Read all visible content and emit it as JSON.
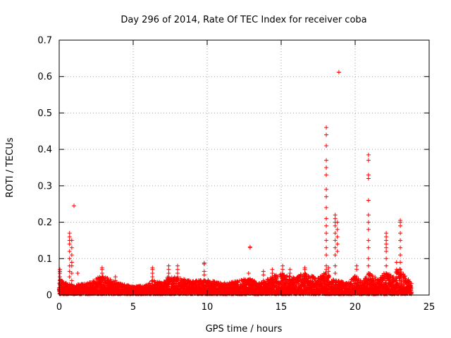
{
  "chart_data": {
    "type": "scatter",
    "title": "Day 296 of 2014, Rate Of TEC Index for receiver coba",
    "xlabel": "GPS time / hours",
    "ylabel": "ROTI / TECUs",
    "xlim": [
      0,
      25
    ],
    "ylim": [
      0,
      0.7
    ],
    "xticks": [
      0,
      5,
      10,
      15,
      20,
      25
    ],
    "xtick_labels": [
      "0",
      "5",
      "10",
      "15",
      "20",
      "25"
    ],
    "yticks": [
      0,
      0.1,
      0.2,
      0.3,
      0.4,
      0.5,
      0.6,
      0.7
    ],
    "ytick_labels": [
      "0",
      "0.1",
      "0.2",
      "0.3",
      "0.4",
      "0.5",
      "0.6",
      "0.7"
    ],
    "grid": true,
    "marker": "+",
    "color": "#ff0000",
    "time_range": [
      0,
      23.8
    ],
    "background_envelope": {
      "x": [
        0,
        0.5,
        1,
        2,
        2.8,
        3.5,
        4,
        5,
        6,
        6.3,
        7,
        7.4,
        8,
        9,
        9.8,
        10.5,
        11,
        12,
        12.8,
        13.5,
        14,
        14.5,
        15,
        15.5,
        16,
        16.5,
        17,
        17.5,
        18,
        18.5,
        19,
        19.5,
        20,
        20.5,
        21,
        21.5,
        22,
        22.5,
        23,
        23.8
      ],
      "y": [
        0.04,
        0.03,
        0.025,
        0.03,
        0.05,
        0.04,
        0.03,
        0.02,
        0.025,
        0.04,
        0.03,
        0.05,
        0.045,
        0.035,
        0.04,
        0.035,
        0.03,
        0.035,
        0.045,
        0.03,
        0.04,
        0.05,
        0.06,
        0.05,
        0.045,
        0.06,
        0.05,
        0.045,
        0.06,
        0.04,
        0.035,
        0.03,
        0.05,
        0.035,
        0.06,
        0.04,
        0.06,
        0.05,
        0.07,
        0.03
      ]
    },
    "clusters": [
      {
        "x": 0.05,
        "y": [
          0.02,
          0.03,
          0.04,
          0.05,
          0.06,
          0.065,
          0.07
        ]
      },
      {
        "x": 0.7,
        "y": [
          0.03,
          0.05,
          0.065,
          0.08,
          0.1,
          0.12,
          0.14,
          0.15,
          0.16,
          0.17
        ]
      },
      {
        "x": 0.85,
        "y": [
          0.04,
          0.06,
          0.08,
          0.09,
          0.11,
          0.13,
          0.15
        ]
      },
      {
        "x": 2.9,
        "y": [
          0.04,
          0.05,
          0.06,
          0.07,
          0.075
        ]
      },
      {
        "x": 3.8,
        "y": [
          0.03,
          0.04,
          0.05
        ]
      },
      {
        "x": 6.3,
        "y": [
          0.04,
          0.05,
          0.06,
          0.07,
          0.075
        ]
      },
      {
        "x": 7.4,
        "y": [
          0.04,
          0.05,
          0.06,
          0.07,
          0.08
        ]
      },
      {
        "x": 8.0,
        "y": [
          0.04,
          0.05,
          0.06,
          0.07,
          0.08
        ]
      },
      {
        "x": 9.8,
        "y": [
          0.04,
          0.055,
          0.065,
          0.085,
          0.088
        ]
      },
      {
        "x": 12.8,
        "y": [
          0.03,
          0.04,
          0.06
        ]
      },
      {
        "x": 12.9,
        "y": [
          0.13,
          0.132
        ]
      },
      {
        "x": 13.8,
        "y": [
          0.04,
          0.055,
          0.065
        ]
      },
      {
        "x": 14.4,
        "y": [
          0.04,
          0.05,
          0.06,
          0.07
        ]
      },
      {
        "x": 15.1,
        "y": [
          0.04,
          0.06,
          0.07,
          0.08
        ]
      },
      {
        "x": 15.6,
        "y": [
          0.04,
          0.05,
          0.06,
          0.07
        ]
      },
      {
        "x": 16.6,
        "y": [
          0.04,
          0.06,
          0.07,
          0.075
        ]
      },
      {
        "x": 18.05,
        "y": [
          0.03,
          0.05,
          0.07,
          0.08,
          0.11,
          0.13,
          0.15,
          0.17,
          0.19,
          0.21,
          0.24,
          0.27,
          0.29,
          0.33,
          0.35,
          0.37,
          0.41,
          0.44,
          0.46
        ]
      },
      {
        "x": 18.2,
        "y": [
          0.03,
          0.05,
          0.065,
          0.075
        ]
      },
      {
        "x": 18.65,
        "y": [
          0.04,
          0.06,
          0.08,
          0.11,
          0.13,
          0.15,
          0.17,
          0.19,
          0.2,
          0.21,
          0.22
        ]
      },
      {
        "x": 18.8,
        "y": [
          0.12,
          0.14,
          0.16,
          0.18,
          0.2
        ]
      },
      {
        "x": 20.1,
        "y": [
          0.05,
          0.07,
          0.08
        ]
      },
      {
        "x": 20.9,
        "y": [
          0.04,
          0.06,
          0.08,
          0.1,
          0.13,
          0.15,
          0.18,
          0.2,
          0.22,
          0.26,
          0.32,
          0.33,
          0.37,
          0.385
        ]
      },
      {
        "x": 22.1,
        "y": [
          0.04,
          0.06,
          0.08,
          0.1,
          0.12,
          0.13,
          0.14,
          0.15,
          0.16,
          0.17
        ]
      },
      {
        "x": 22.8,
        "y": [
          0.04,
          0.06,
          0.07,
          0.09
        ]
      },
      {
        "x": 23.05,
        "y": [
          0.05,
          0.07,
          0.09,
          0.11,
          0.13,
          0.15,
          0.17,
          0.19,
          0.2,
          0.205
        ]
      }
    ],
    "outliers": [
      {
        "x": 1.0,
        "y": 0.245
      },
      {
        "x": 1.25,
        "y": 0.06
      },
      {
        "x": 18.9,
        "y": 0.612
      }
    ]
  }
}
